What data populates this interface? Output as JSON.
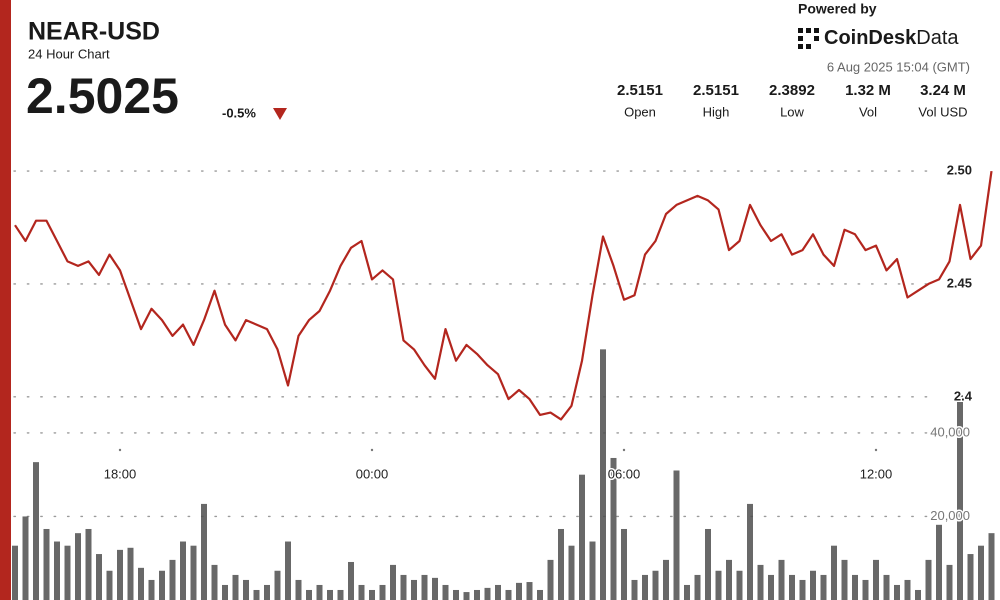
{
  "header": {
    "title": "NEAR-USD",
    "subtitle": "24 Hour Chart",
    "price": "2.5025",
    "change": "-0.5%"
  },
  "branding": {
    "powered_by": "Powered by",
    "name": "CoinDesk",
    "suffix": "Data",
    "timestamp": "6 Aug 2025 15:04 (GMT)"
  },
  "stats": [
    {
      "value": "2.5151",
      "label": "Open"
    },
    {
      "value": "2.5151",
      "label": "High"
    },
    {
      "value": "2.3892",
      "label": "Low"
    },
    {
      "value": "1.32 M",
      "label": "Vol"
    },
    {
      "value": "3.24 M",
      "label": "Vol USD"
    }
  ],
  "chart_data": {
    "type": "line",
    "categories": [
      null,
      null,
      null,
      null,
      null,
      null,
      null,
      null,
      null,
      null,
      "18:00",
      null,
      null,
      null,
      null,
      null,
      null,
      null,
      null,
      null,
      null,
      null,
      null,
      null,
      null,
      null,
      null,
      null,
      null,
      null,
      null,
      null,
      null,
      null,
      "00:00",
      null,
      null,
      null,
      null,
      null,
      null,
      null,
      null,
      null,
      null,
      null,
      null,
      null,
      null,
      null,
      null,
      null,
      null,
      null,
      null,
      null,
      null,
      null,
      "06:00",
      null,
      null,
      null,
      null,
      null,
      null,
      null,
      null,
      null,
      null,
      null,
      null,
      null,
      null,
      null,
      null,
      null,
      null,
      null,
      null,
      null,
      null,
      null,
      "12:00",
      null,
      null,
      null,
      null,
      null,
      null,
      null,
      null,
      null,
      null,
      null
    ],
    "series": [
      {
        "type": "area",
        "color": "#b3261e",
        "values": [
          2.476,
          2.469,
          2.478,
          2.478,
          2.469,
          2.46,
          2.458,
          2.46,
          2.454,
          2.463,
          2.456,
          2.443,
          2.43,
          2.439,
          2.434,
          2.427,
          2.432,
          2.423,
          2.434,
          2.447,
          2.432,
          2.425,
          2.434,
          2.432,
          2.43,
          2.421,
          2.405,
          2.427,
          2.434,
          2.438,
          2.447,
          2.458,
          2.466,
          2.469,
          2.452,
          2.456,
          2.452,
          2.425,
          2.421,
          2.414,
          2.408,
          2.43,
          2.416,
          2.423,
          2.419,
          2.414,
          2.41,
          2.399,
          2.403,
          2.399,
          2.392,
          2.393,
          2.39,
          2.396,
          2.416,
          2.445,
          2.471,
          2.458,
          2.443,
          2.445,
          2.463,
          2.469,
          2.481,
          2.485,
          2.487,
          2.489,
          2.487,
          2.483,
          2.465,
          2.469,
          2.485,
          2.476,
          2.469,
          2.472,
          2.463,
          2.465,
          2.472,
          2.463,
          2.458,
          2.474,
          2.472,
          2.465,
          2.467,
          2.456,
          2.461,
          2.444,
          2.447,
          2.45,
          2.452,
          2.46,
          2.485,
          2.461,
          2.467,
          2.5
        ]
      },
      {
        "type": "bar",
        "axis": "y2",
        "color": "#4d4d4d",
        "values": [
          13000,
          20000,
          33000,
          17000,
          14000,
          13000,
          16000,
          17000,
          11000,
          7000,
          12000,
          12500,
          7700,
          4800,
          7000,
          9600,
          14000,
          13000,
          23000,
          8400,
          3600,
          6000,
          4800,
          2400,
          3600,
          7000,
          14000,
          4800,
          2400,
          3600,
          2400,
          2400,
          9100,
          3600,
          2400,
          3600,
          8400,
          6000,
          4800,
          6000,
          5300,
          3600,
          2400,
          1900,
          2400,
          2900,
          3600,
          2400,
          4100,
          4300,
          2400,
          9600,
          17000,
          13000,
          30000,
          14000,
          60000,
          34000,
          17000,
          4800,
          6000,
          7000,
          9600,
          31000,
          3600,
          6000,
          17000,
          7000,
          9600,
          7000,
          23000,
          8400,
          6000,
          9600,
          6000,
          4800,
          7000,
          6000,
          13000,
          9600,
          6000,
          4800,
          9600,
          6000,
          3600,
          4800,
          2400,
          9600,
          18000,
          8400,
          49000,
          11000,
          13000,
          16000
        ]
      }
    ],
    "ylim": [
      2.31,
      2.508
    ],
    "yticks": [
      2.4,
      2.45,
      {
        "value": 2.5,
        "label": "2.50"
      }
    ],
    "y2lim": [
      0,
      107000
    ],
    "y2ticks": [
      {
        "value": 20000,
        "label": "20,000"
      },
      {
        "value": 40000,
        "label": "40,000"
      }
    ],
    "grid": true
  }
}
